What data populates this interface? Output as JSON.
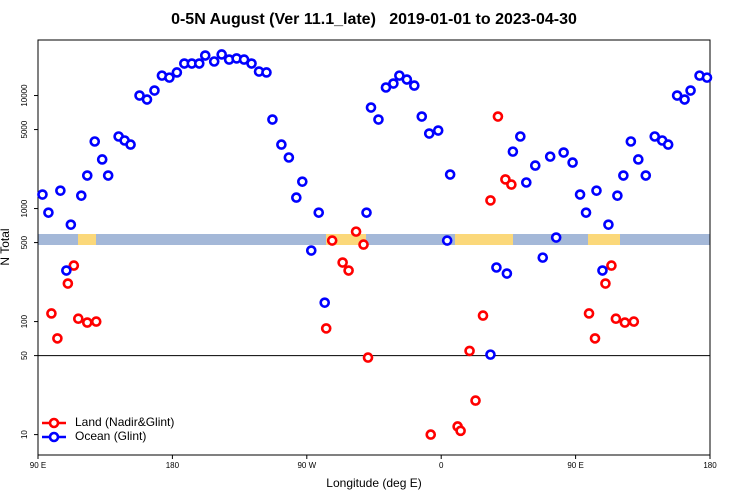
{
  "chart_data": {
    "type": "scatter",
    "title": "0-5N August (Ver 11.1_late)   2019-01-01 to 2023-04-30",
    "x_label": "Longitude (deg E)",
    "y_label": "N Total",
    "log_y": true,
    "legend": "bottom-left",
    "hline": 50,
    "xlim": [
      90,
      540
    ],
    "xticks": [
      {
        "value": 90,
        "label": "90 E"
      },
      {
        "value": 180,
        "label": "180"
      },
      {
        "value": 270,
        "label": "90 W"
      },
      {
        "value": 360,
        "label": "0"
      },
      {
        "value": 450,
        "label": "90 E"
      },
      {
        "value": 540,
        "label": "180"
      }
    ],
    "ylim": [
      6.6,
      31000
    ],
    "yticks": [
      10,
      50,
      100,
      500,
      1000,
      5000,
      10000
    ],
    "series": [
      {
        "name": "Land (Nadir&Glint)",
        "color": "#ff0000",
        "x": [
          99,
          103,
          110,
          114,
          117,
          123,
          129,
          283,
          287,
          294,
          298,
          303,
          308,
          311,
          353,
          371,
          373,
          379,
          383,
          388,
          393,
          398,
          403,
          407,
          459,
          463,
          470,
          474,
          477,
          483,
          489
        ],
        "values": [
          118,
          71,
          217,
          313,
          106,
          98,
          100,
          87,
          521,
          333,
          283,
          625,
          480,
          48,
          10,
          11.8,
          10.8,
          55,
          20,
          113,
          1180,
          6520,
          1810,
          1630,
          118,
          71,
          217,
          313,
          106,
          98,
          100
        ]
      },
      {
        "name": "Ocean (Glint)",
        "color": "#0000ff",
        "x": [
          93,
          97,
          105,
          109,
          112,
          119,
          123,
          128,
          133,
          137,
          144,
          148,
          152,
          158,
          163,
          168,
          173,
          178,
          183,
          188,
          193,
          198,
          202,
          208,
          213,
          218,
          223,
          228,
          233,
          238,
          243,
          247,
          253,
          258,
          263,
          267,
          273,
          278,
          282,
          310,
          313,
          318,
          323,
          328,
          332,
          337,
          342,
          347,
          352,
          358,
          364,
          366,
          393,
          397,
          404,
          408,
          413,
          417,
          423,
          428,
          433,
          437,
          442,
          448,
          453,
          457,
          464,
          468,
          472,
          478,
          482,
          487,
          492,
          497,
          503,
          508,
          512,
          518,
          523,
          527,
          533,
          538
        ],
        "values": [
          1330,
          920,
          1440,
          283,
          720,
          1300,
          1960,
          3920,
          2720,
          1960,
          4340,
          4000,
          3680,
          10000,
          9220,
          11070,
          15000,
          14400,
          16000,
          19200,
          19200,
          19200,
          22600,
          20000,
          23100,
          20800,
          21300,
          20800,
          19200,
          16300,
          16000,
          6130,
          3680,
          2830,
          1250,
          1730,
          425,
          920,
          147,
          920,
          7830,
          6130,
          11780,
          12770,
          15000,
          13860,
          12250,
          6520,
          4610,
          4900,
          521,
          2000,
          51,
          301,
          266,
          3190,
          4340,
          1700,
          2400,
          368,
          2880,
          554,
          3130,
          2550,
          1330,
          920,
          1440,
          283,
          720,
          1300,
          1960,
          3920,
          2720,
          1960,
          4340,
          4000,
          3680,
          10000,
          9220,
          11070,
          15000,
          14400
        ]
      }
    ]
  }
}
